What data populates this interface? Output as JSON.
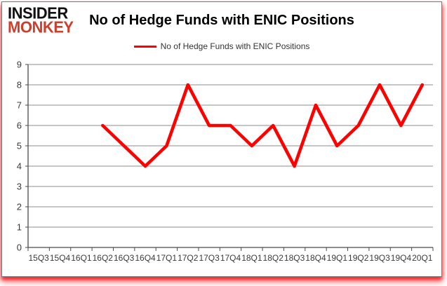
{
  "logo": {
    "line1": "INSIDER",
    "line2": "MONKEY"
  },
  "header": {
    "title": "No of Hedge Funds with ENIC Positions"
  },
  "legend": {
    "label": "No of Hedge Funds with ENIC Positions",
    "line_color": "#ff0000"
  },
  "colors": {
    "series_line": "#ff0000",
    "logo_red": "#ce3f2b",
    "grid_line": "#8e8e8e",
    "axis_line": "#4a4a4a",
    "axis_text": "#3a3a3a",
    "card_border": "#7a7a7a",
    "glow": "#ed1c24"
  },
  "chart_data": {
    "type": "line",
    "title": "No of Hedge Funds with ENIC Positions",
    "xlabel": "",
    "ylabel": "",
    "categories": [
      "15Q3",
      "15Q4",
      "16Q1",
      "16Q2",
      "16Q3",
      "16Q4",
      "17Q1",
      "17Q2",
      "17Q3",
      "17Q4",
      "18Q1",
      "18Q2",
      "18Q3",
      "18Q4",
      "19Q1",
      "19Q2",
      "19Q3",
      "19Q4",
      "20Q1"
    ],
    "series": [
      {
        "name": "No of Hedge Funds with ENIC Positions",
        "color": "#ff0000",
        "values": [
          null,
          null,
          null,
          6,
          5,
          4,
          5,
          8,
          6,
          6,
          5,
          6,
          4,
          7,
          5,
          6,
          8,
          6,
          8
        ]
      }
    ],
    "ylim": [
      0,
      9
    ],
    "ytick_interval": 1,
    "grid": true,
    "legend_position": "top-center"
  }
}
